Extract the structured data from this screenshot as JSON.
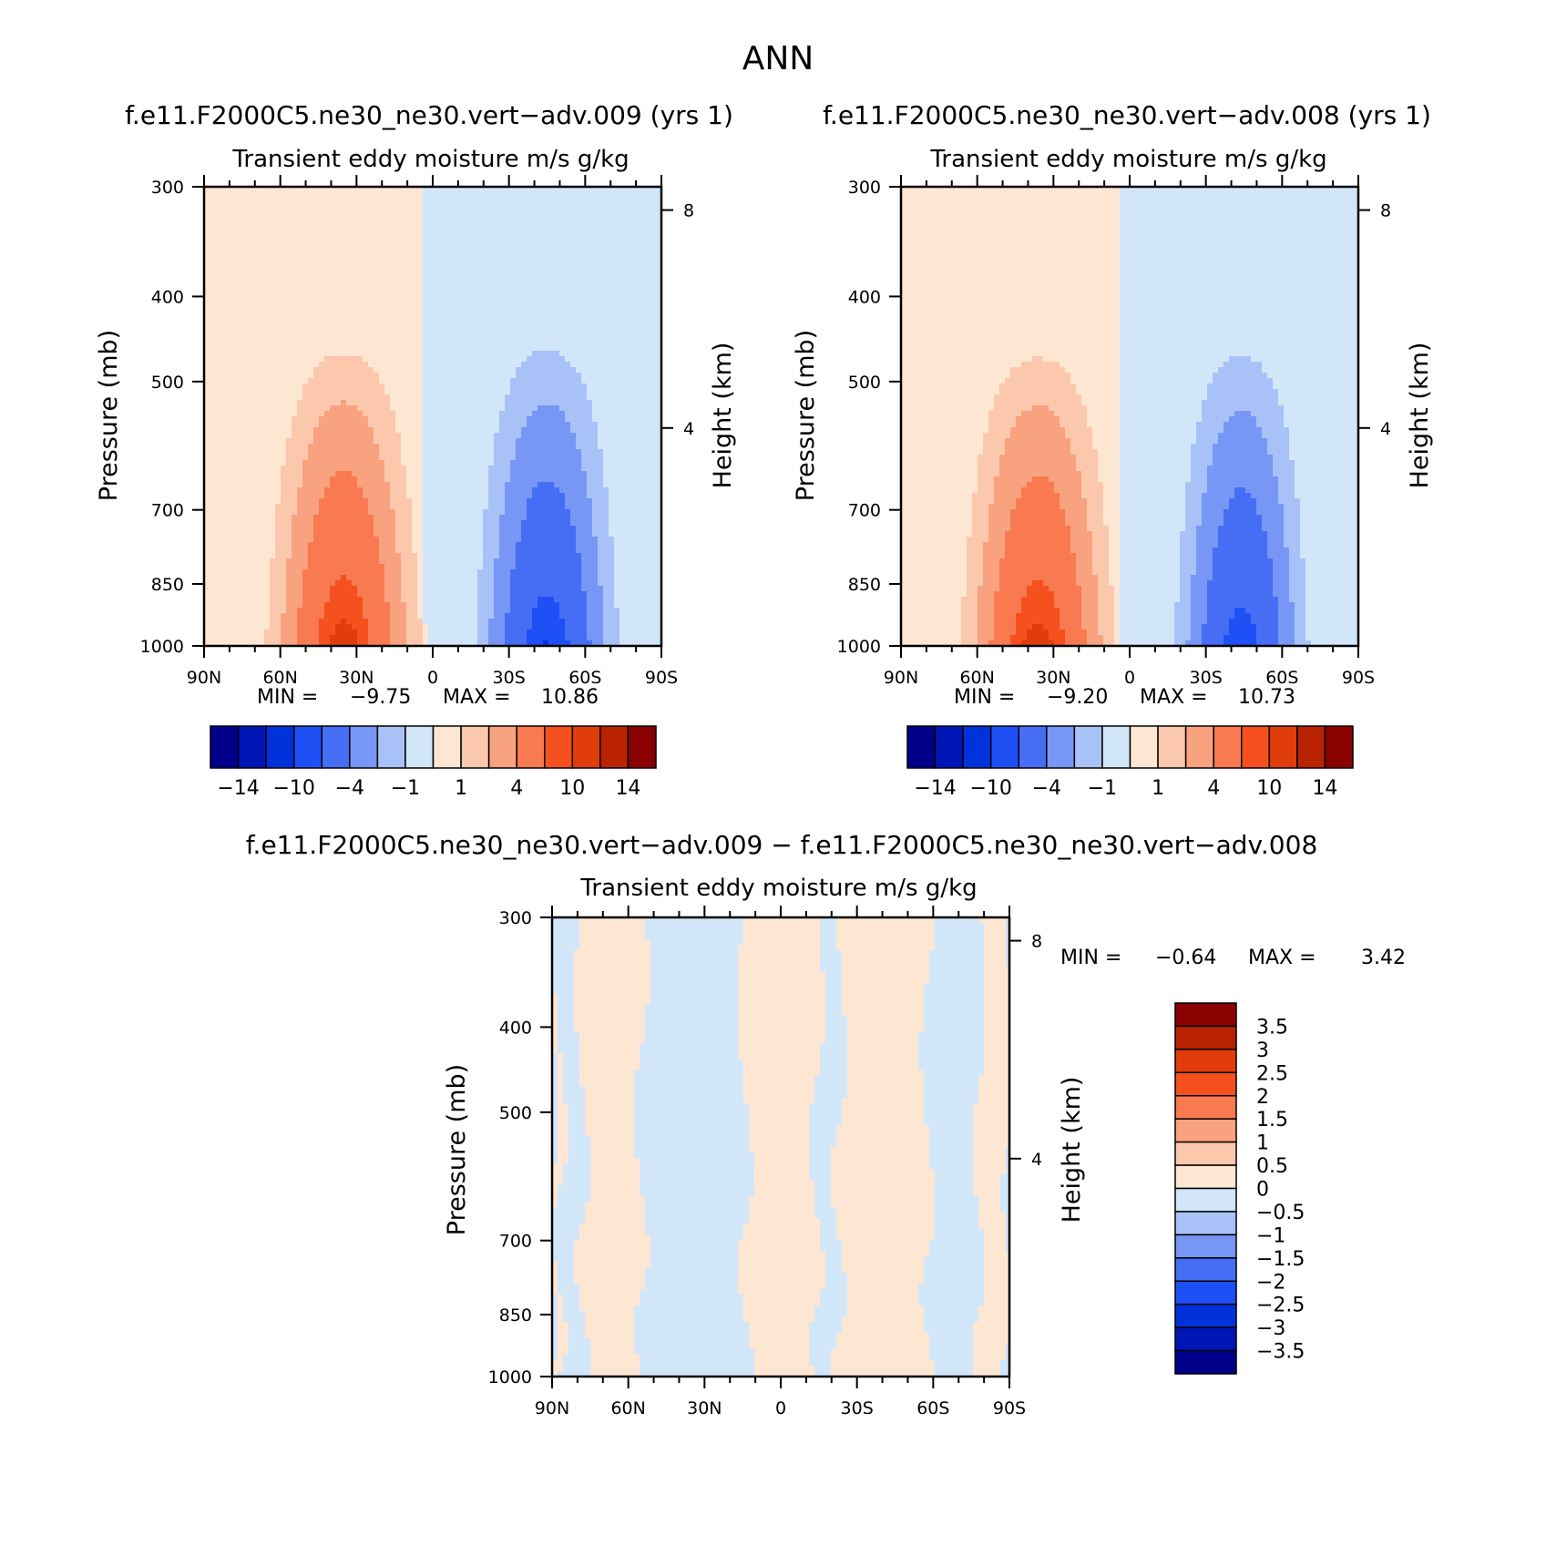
{
  "figure": {
    "title": "ANN"
  },
  "colors": {
    "test_ctrl_scale": [
      "#00008b",
      "#0015b6",
      "#0032dc",
      "#1e50f5",
      "#466ef5",
      "#7896f5",
      "#a8c2f7",
      "#d2e6fa",
      "#fde6d2",
      "#fcc8ad",
      "#f9a27f",
      "#f97a50",
      "#f5501e",
      "#e13d0a",
      "#b92300",
      "#8b0000"
    ],
    "diff_scale": [
      "#00008b",
      "#0015b6",
      "#0032dc",
      "#1e50f5",
      "#466ef5",
      "#7896f5",
      "#a8c2f7",
      "#d2e6fa",
      "#fde6d2",
      "#fcc8ad",
      "#f9a27f",
      "#f97a50",
      "#f5501e",
      "#e13d0a",
      "#b92300",
      "#8b0000"
    ]
  },
  "chart_data": [
    {
      "type": "heatmap",
      "id": "test",
      "title": "f.e11.F2000C5.ne30_ne30.vert−adv.009  (yrs  1)",
      "subtitle": "Transient  eddy  moisture m/s  g/kg",
      "ylabel": "Pressure  (mb)",
      "ylabel_right": "Height  (km)",
      "x_ticks": [
        "90N",
        "60N",
        "30N",
        "0",
        "30S",
        "60S",
        "90S"
      ],
      "x_values": [
        90,
        60,
        30,
        0,
        -30,
        -60,
        -90
      ],
      "y_ticks": [
        "300",
        "400",
        "500",
        "700",
        "850",
        "1000"
      ],
      "y_values": [
        300,
        400,
        500,
        700,
        850,
        1000
      ],
      "y_right_ticks": [
        "8",
        "4"
      ],
      "y_right_values": [
        8,
        4
      ],
      "ylim": [
        300,
        1000
      ],
      "xlim": [
        90,
        -90
      ],
      "stats": {
        "min_label": "MIN  =",
        "min": "−9.75",
        "max_label": "MAX  =",
        "max": "10.86"
      },
      "levels": [
        -14,
        -12,
        -10,
        -8,
        -4,
        -2,
        -1,
        0,
        1,
        2,
        4,
        8,
        10,
        12,
        14
      ],
      "colorbar_labels": [
        "−14",
        "−10",
        "−4",
        "−1",
        "1",
        "4",
        "10",
        "14"
      ],
      "field": {
        "pos_peak": 10.86,
        "pos_lat": 35,
        "pos_lat_width": 18,
        "pos_top": 400,
        "neg_peak": -9.75,
        "neg_lat": -45,
        "neg_lat_width": 17,
        "neg_top": 390
      }
    },
    {
      "type": "heatmap",
      "id": "ctrl",
      "title": "f.e11.F2000C5.ne30_ne30.vert−adv.008  (yrs  1)",
      "subtitle": "Transient  eddy  moisture m/s  g/kg",
      "ylabel": "Pressure  (mb)",
      "ylabel_right": "Height  (km)",
      "x_ticks": [
        "90N",
        "60N",
        "30N",
        "0",
        "30S",
        "60S",
        "90S"
      ],
      "x_values": [
        90,
        60,
        30,
        0,
        -30,
        -60,
        -90
      ],
      "y_ticks": [
        "300",
        "400",
        "500",
        "700",
        "850",
        "1000"
      ],
      "y_values": [
        300,
        400,
        500,
        700,
        850,
        1000
      ],
      "y_right_ticks": [
        "8",
        "4"
      ],
      "y_right_values": [
        8,
        4
      ],
      "ylim": [
        300,
        1000
      ],
      "xlim": [
        90,
        -90
      ],
      "stats": {
        "min_label": "MIN  =",
        "min": "−9.20",
        "max_label": "MAX  =",
        "max": "10.73"
      },
      "levels": [
        -14,
        -12,
        -10,
        -8,
        -4,
        -2,
        -1,
        0,
        1,
        2,
        4,
        8,
        10,
        12,
        14
      ],
      "colorbar_labels": [
        "−14",
        "−10",
        "−4",
        "−1",
        "1",
        "4",
        "10",
        "14"
      ],
      "field": {
        "pos_peak": 10.73,
        "pos_lat": 36,
        "pos_lat_width": 18,
        "pos_top": 405,
        "neg_peak": -9.2,
        "neg_lat": -44,
        "neg_lat_width": 16,
        "neg_top": 395
      }
    },
    {
      "type": "heatmap",
      "id": "diff",
      "title": "f.e11.F2000C5.ne30_ne30.vert−adv.009  −  f.e11.F2000C5.ne30_ne30.vert−adv.008",
      "subtitle": "Transient  eddy  moisture m/s  g/kg",
      "ylabel": "Pressure  (mb)",
      "ylabel_right": "Height  (km)",
      "x_ticks": [
        "90N",
        "60N",
        "30N",
        "0",
        "30S",
        "60S",
        "90S"
      ],
      "x_values": [
        90,
        60,
        30,
        0,
        -30,
        -60,
        -90
      ],
      "y_ticks": [
        "300",
        "400",
        "500",
        "700",
        "850",
        "1000"
      ],
      "y_values": [
        300,
        400,
        500,
        700,
        850,
        1000
      ],
      "y_right_ticks": [
        "8",
        "4"
      ],
      "y_right_values": [
        8,
        4
      ],
      "ylim": [
        300,
        1000
      ],
      "xlim": [
        90,
        -90
      ],
      "stats": {
        "min_label": "MIN  =",
        "min": "−0.64",
        "max_label": "MAX  =",
        "max": "3.42"
      },
      "levels": [
        -3.5,
        -3,
        -2.5,
        -2,
        -1.5,
        -1,
        -0.5,
        0,
        0.5,
        1,
        1.5,
        2,
        2.5,
        3,
        3.5
      ],
      "colorbar_labels": [
        "3.5",
        "3",
        "2.5",
        "2",
        "1.5",
        "1",
        "0.5",
        "0",
        "−0.5",
        "−1",
        "−1.5",
        "−2",
        "−2.5",
        "−3",
        "−3.5"
      ],
      "positive_bands_lat": [
        [
          90,
          87
        ],
        [
          78,
          55
        ],
        [
          14,
          -14
        ],
        [
          -23,
          -58
        ],
        [
          -78,
          -90
        ]
      ]
    }
  ]
}
